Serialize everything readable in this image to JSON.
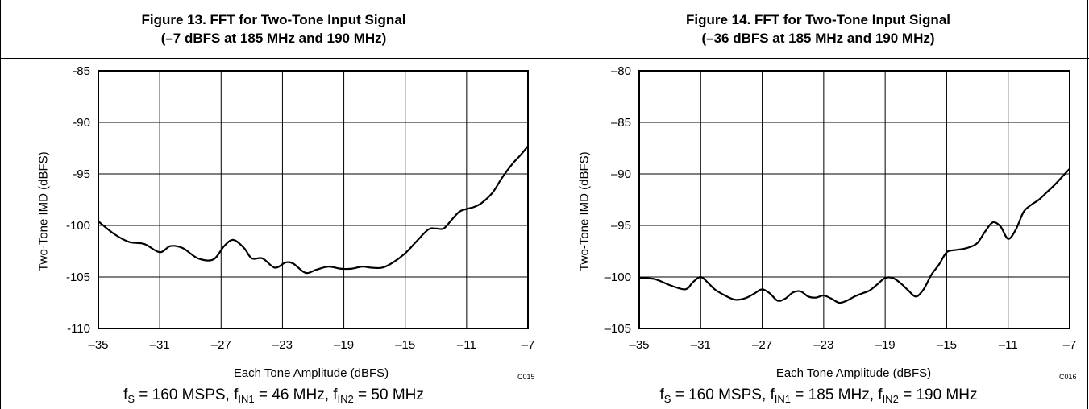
{
  "chart_data": [
    {
      "type": "line",
      "title_line1": "Figure 13. FFT for Two-Tone Input Signal",
      "title_line2": "(–7 dBFS at 185 MHz and 190 MHz)",
      "xlabel": "Each Tone Amplitude (dBFS)",
      "ylabel": "Two-Tone IMD (dBFS)",
      "code": "C015",
      "xlim": [
        -35,
        -7
      ],
      "ylim": [
        -110,
        -85
      ],
      "x_ticks": [
        -35,
        -31,
        -27,
        -23,
        -19,
        -15,
        -11,
        -7
      ],
      "x_tick_labels": [
        "–35",
        "–31",
        "–27",
        "–23",
        "–19",
        "–15",
        "–11",
        "–7"
      ],
      "y_ticks": [
        -85,
        -90,
        -95,
        -100,
        -105,
        -110
      ],
      "y_tick_labels": [
        "-85",
        "-90",
        "-95",
        "-100",
        "-105",
        "-110"
      ],
      "grid": true,
      "conditions": {
        "fs_label": "f",
        "fs_sub": "S",
        "fs_value": " = 160 MSPS, ",
        "f1_label": "f",
        "f1_sub": "IN1",
        "f1_value": " = 46 MHz, ",
        "f2_label": "f",
        "f2_sub": "IN2",
        "f2_value": " = 50 MHz"
      },
      "x": [
        -35,
        -34,
        -33,
        -32,
        -31,
        -30.3,
        -29.5,
        -28.5,
        -27.5,
        -26.8,
        -26.2,
        -25.5,
        -25,
        -24.3,
        -23.5,
        -22.8,
        -22.3,
        -21.5,
        -20.8,
        -20,
        -19.2,
        -18.5,
        -17.8,
        -17.2,
        -16.5,
        -15.8,
        -15,
        -14.3,
        -13.5,
        -13,
        -12.5,
        -12,
        -11.5,
        -11,
        -10.5,
        -10,
        -9.3,
        -8.7,
        -8,
        -7.5,
        -7
      ],
      "y": [
        -99.6,
        -100.8,
        -101.6,
        -101.8,
        -102.6,
        -102.0,
        -102.2,
        -103.2,
        -103.3,
        -102.0,
        -101.4,
        -102.2,
        -103.2,
        -103.2,
        -104.1,
        -103.6,
        -103.7,
        -104.6,
        -104.3,
        -104.0,
        -104.2,
        -104.2,
        -104.0,
        -104.1,
        -104.1,
        -103.6,
        -102.7,
        -101.6,
        -100.4,
        -100.3,
        -100.3,
        -99.5,
        -98.7,
        -98.4,
        -98.2,
        -97.8,
        -96.8,
        -95.4,
        -94.0,
        -93.2,
        -92.3
      ]
    },
    {
      "type": "line",
      "title_line1": "Figure 14. FFT for Two-Tone Input Signal",
      "title_line2": "(–36 dBFS at 185 MHz and 190 MHz)",
      "xlabel": "Each Tone Amplitude (dBFS)",
      "ylabel": "Two-Tone IMD (dBFS)",
      "code": "C016",
      "xlim": [
        -35,
        -7
      ],
      "ylim": [
        -105,
        -80
      ],
      "x_ticks": [
        -35,
        -31,
        -27,
        -23,
        -19,
        -15,
        -11,
        -7
      ],
      "x_tick_labels": [
        "–35",
        "–31",
        "–27",
        "–23",
        "–19",
        "–15",
        "–11",
        "–7"
      ],
      "y_ticks": [
        -80,
        -85,
        -90,
        -95,
        -100,
        -105
      ],
      "y_tick_labels": [
        "–80",
        "–85",
        "–90",
        "–95",
        "–100",
        "–105"
      ],
      "grid": true,
      "conditions": {
        "fs_label": "f",
        "fs_sub": "S",
        "fs_value": " = 160 MSPS, ",
        "f1_label": "f",
        "f1_sub": "IN1",
        "f1_value": " = 185 MHz, ",
        "f2_label": "f",
        "f2_sub": "IN2",
        "f2_value": " = 190 MHz"
      },
      "x": [
        -35,
        -34,
        -33,
        -32,
        -31.5,
        -31,
        -30.5,
        -30,
        -29,
        -28.5,
        -28,
        -27.5,
        -27,
        -26.5,
        -26,
        -25.5,
        -25,
        -24.5,
        -24,
        -23.5,
        -23,
        -22.5,
        -22,
        -21.5,
        -21,
        -20.5,
        -20,
        -19.5,
        -19,
        -18.5,
        -18,
        -17.5,
        -17,
        -16.5,
        -16,
        -15.5,
        -15,
        -14.5,
        -14,
        -13.5,
        -13,
        -12.5,
        -12,
        -11.5,
        -11,
        -10.5,
        -10,
        -9.5,
        -9,
        -8.5,
        -8,
        -7.5,
        -7
      ],
      "y": [
        -100.1,
        -100.2,
        -100.8,
        -101.2,
        -100.5,
        -100.0,
        -100.6,
        -101.3,
        -102.1,
        -102.2,
        -102.0,
        -101.6,
        -101.2,
        -101.6,
        -102.3,
        -102.1,
        -101.5,
        -101.4,
        -101.9,
        -102.0,
        -101.8,
        -102.1,
        -102.5,
        -102.3,
        -101.9,
        -101.6,
        -101.3,
        -100.7,
        -100.1,
        -100.1,
        -100.6,
        -101.3,
        -101.9,
        -101.2,
        -99.8,
        -98.8,
        -97.6,
        -97.4,
        -97.3,
        -97.1,
        -96.7,
        -95.6,
        -94.7,
        -95.1,
        -96.3,
        -95.4,
        -93.7,
        -93.0,
        -92.5,
        -91.8,
        -91.1,
        -90.3,
        -89.5
      ]
    }
  ]
}
